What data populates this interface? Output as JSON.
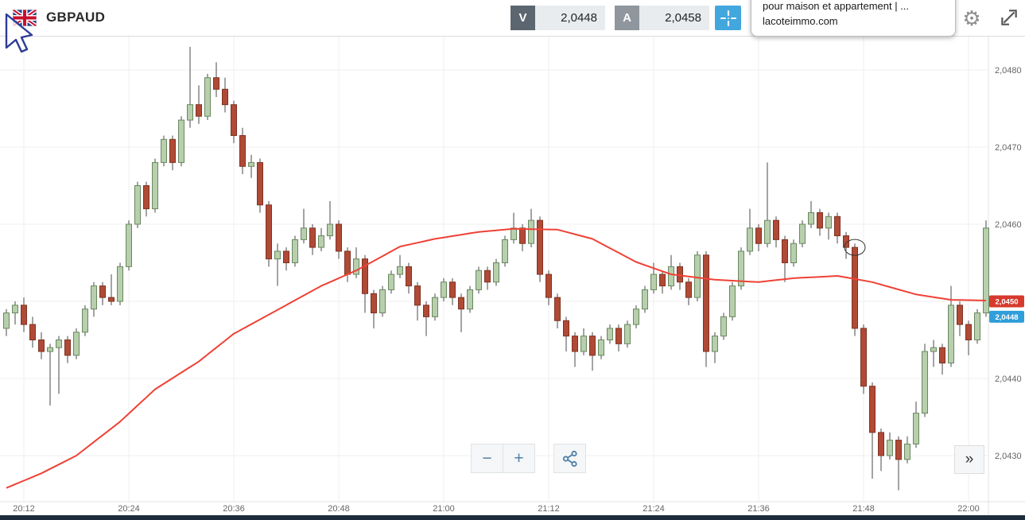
{
  "header": {
    "symbol": "GBPAUD",
    "sell": {
      "label": "V",
      "price": "2,0448"
    },
    "buy": {
      "label": "A",
      "price": "2,0458"
    },
    "popup": {
      "title": "pour maison et appartement | ...",
      "domain": "lacoteimmo.com"
    },
    "gear_icon": "⚙"
  },
  "footer_controls": {
    "zoom_out": "−",
    "zoom_in": "+",
    "more": "»"
  },
  "chart_data": {
    "type": "candlestick",
    "title": "GBPAUD 1-minute candlestick chart with red moving-average overlay",
    "price_base": 2.04,
    "pip_unit": 0.0001,
    "candles_format": "[open, high, low, close] in pips above 2.04 (e.g. 48.5 = 2.04485)",
    "start_time": "20:10",
    "interval_minutes": 1,
    "ylim": [
      2.0424,
      2.0484
    ],
    "grid": true,
    "x_ticks": [
      {
        "i": 2,
        "label": "20:12"
      },
      {
        "i": 14,
        "label": "20:24"
      },
      {
        "i": 26,
        "label": "20:36"
      },
      {
        "i": 38,
        "label": "20:48"
      },
      {
        "i": 50,
        "label": "21:00"
      },
      {
        "i": 62,
        "label": "21:12"
      },
      {
        "i": 74,
        "label": "21:24"
      },
      {
        "i": 86,
        "label": "21:36"
      },
      {
        "i": 98,
        "label": "21:48"
      },
      {
        "i": 110,
        "label": "22:00"
      }
    ],
    "y_gridlines": [
      2.048,
      2.047,
      2.046,
      2.045,
      2.044,
      2.043
    ],
    "y_ticks": [
      {
        "price": 2.048,
        "label": "2,0480"
      },
      {
        "price": 2.047,
        "label": "2,0470"
      },
      {
        "price": 2.046,
        "label": "2,0460"
      },
      {
        "price": 2.044,
        "label": "2,0440"
      },
      {
        "price": 2.043,
        "label": "2,0430"
      }
    ],
    "price_badges": [
      {
        "price": 2.045,
        "label": "2,0450",
        "color": "#d63a2c"
      },
      {
        "price": 2.0448,
        "label": "2,0448",
        "color": "#2f9ed9"
      }
    ],
    "annotation_circle": {
      "i": 97,
      "price": 2.0457
    },
    "colors": {
      "up_fill": "#b8cfae",
      "up_stroke": "#69885e",
      "down_fill": "#b04a36",
      "down_stroke": "#7e3322",
      "wick": "#4a4a4a",
      "ma": "#ef4136",
      "grid": "#efefef",
      "axis_line": "#e3e3e3",
      "axis_text": "#666666"
    },
    "candles": [
      [
        46.5,
        49.0,
        45.5,
        48.5
      ],
      [
        48.5,
        50.0,
        47.0,
        49.5
      ],
      [
        49.5,
        50.5,
        46.0,
        47.0
      ],
      [
        47.0,
        48.0,
        44.0,
        45.0
      ],
      [
        45.0,
        46.0,
        42.5,
        43.5
      ],
      [
        43.5,
        44.5,
        36.5,
        44.0
      ],
      [
        44.0,
        45.5,
        38.0,
        45.0
      ],
      [
        45.0,
        45.5,
        42.0,
        43.0
      ],
      [
        43.0,
        46.5,
        42.5,
        46.0
      ],
      [
        46.0,
        49.5,
        45.5,
        49.0
      ],
      [
        49.0,
        52.5,
        48.0,
        52.0
      ],
      [
        52.0,
        52.5,
        49.5,
        50.5
      ],
      [
        50.5,
        53.5,
        49.5,
        50.0
      ],
      [
        50.0,
        55.0,
        49.5,
        54.5
      ],
      [
        54.5,
        60.5,
        54.0,
        60.0
      ],
      [
        60.0,
        65.5,
        59.5,
        65.0
      ],
      [
        65.0,
        65.5,
        61.0,
        62.0
      ],
      [
        62.0,
        68.5,
        61.5,
        68.0
      ],
      [
        68.0,
        71.5,
        67.5,
        71.0
      ],
      [
        71.0,
        71.5,
        67.0,
        68.0
      ],
      [
        68.0,
        74.0,
        67.5,
        73.5
      ],
      [
        73.5,
        83.0,
        72.5,
        75.5
      ],
      [
        75.5,
        78.0,
        73.0,
        74.0
      ],
      [
        74.0,
        79.5,
        73.5,
        79.0
      ],
      [
        79.0,
        81.0,
        76.5,
        77.5
      ],
      [
        77.5,
        79.0,
        74.5,
        75.5
      ],
      [
        75.5,
        76.0,
        70.5,
        71.5
      ],
      [
        71.5,
        72.5,
        66.5,
        67.5
      ],
      [
        67.5,
        69.0,
        66.0,
        68.0
      ],
      [
        68.0,
        68.5,
        61.5,
        62.5
      ],
      [
        62.5,
        63.0,
        54.5,
        55.5
      ],
      [
        55.5,
        57.5,
        52.0,
        56.5
      ],
      [
        56.5,
        57.0,
        54.0,
        55.0
      ],
      [
        55.0,
        58.5,
        54.5,
        58.0
      ],
      [
        58.0,
        62.0,
        57.5,
        59.5
      ],
      [
        59.5,
        60.0,
        56.0,
        57.0
      ],
      [
        57.0,
        59.5,
        56.5,
        58.5
      ],
      [
        58.5,
        63.0,
        58.0,
        60.0
      ],
      [
        60.0,
        60.5,
        55.5,
        56.5
      ],
      [
        56.5,
        57.0,
        52.5,
        53.5
      ],
      [
        53.5,
        57.0,
        53.0,
        55.5
      ],
      [
        55.5,
        56.0,
        48.5,
        51.0
      ],
      [
        51.0,
        51.5,
        46.5,
        48.5
      ],
      [
        48.5,
        52.0,
        48.0,
        51.5
      ],
      [
        51.5,
        54.0,
        51.0,
        53.5
      ],
      [
        53.5,
        56.0,
        53.0,
        54.5
      ],
      [
        54.5,
        55.0,
        51.0,
        52.0
      ],
      [
        52.0,
        52.5,
        47.5,
        49.5
      ],
      [
        49.5,
        50.0,
        45.5,
        48.0
      ],
      [
        48.0,
        51.0,
        47.5,
        50.5
      ],
      [
        50.5,
        53.0,
        50.0,
        52.5
      ],
      [
        52.5,
        53.0,
        49.5,
        50.5
      ],
      [
        50.5,
        51.0,
        46.0,
        49.0
      ],
      [
        49.0,
        52.0,
        48.5,
        51.5
      ],
      [
        51.5,
        54.5,
        51.0,
        54.0
      ],
      [
        54.0,
        54.5,
        51.5,
        52.5
      ],
      [
        52.5,
        55.5,
        52.0,
        55.0
      ],
      [
        55.0,
        58.5,
        54.5,
        58.0
      ],
      [
        58.0,
        61.5,
        57.5,
        59.5
      ],
      [
        59.5,
        60.0,
        56.5,
        57.5
      ],
      [
        57.5,
        62.0,
        57.0,
        60.5
      ],
      [
        60.5,
        61.0,
        52.5,
        53.5
      ],
      [
        53.5,
        54.0,
        49.5,
        50.5
      ],
      [
        50.5,
        51.0,
        46.5,
        47.5
      ],
      [
        47.5,
        48.0,
        43.5,
        45.5
      ],
      [
        45.5,
        46.0,
        41.5,
        43.5
      ],
      [
        43.5,
        46.5,
        43.0,
        45.5
      ],
      [
        45.5,
        46.0,
        41.0,
        43.0
      ],
      [
        43.0,
        45.5,
        42.5,
        45.0
      ],
      [
        45.0,
        47.0,
        44.5,
        46.5
      ],
      [
        46.5,
        47.0,
        43.5,
        44.5
      ],
      [
        44.5,
        47.5,
        44.0,
        47.0
      ],
      [
        47.0,
        49.5,
        46.5,
        49.0
      ],
      [
        49.0,
        52.0,
        48.5,
        51.5
      ],
      [
        51.5,
        55.0,
        51.0,
        53.5
      ],
      [
        53.5,
        54.0,
        51.0,
        52.0
      ],
      [
        52.0,
        56.0,
        51.5,
        54.5
      ],
      [
        54.5,
        55.0,
        51.5,
        52.5
      ],
      [
        52.5,
        53.0,
        49.5,
        50.5
      ],
      [
        50.5,
        56.5,
        50.0,
        56.0
      ],
      [
        56.0,
        56.5,
        41.5,
        43.5
      ],
      [
        43.5,
        46.0,
        42.0,
        45.5
      ],
      [
        45.5,
        48.5,
        45.0,
        48.0
      ],
      [
        48.0,
        52.5,
        47.5,
        52.0
      ],
      [
        52.0,
        57.0,
        51.5,
        56.5
      ],
      [
        56.5,
        62.0,
        56.0,
        59.5
      ],
      [
        59.5,
        60.0,
        56.5,
        57.5
      ],
      [
        57.5,
        68.0,
        57.0,
        60.5
      ],
      [
        60.5,
        61.0,
        57.0,
        58.0
      ],
      [
        58.0,
        58.5,
        52.5,
        55.0
      ],
      [
        55.0,
        58.0,
        54.5,
        57.5
      ],
      [
        57.5,
        60.5,
        57.0,
        60.0
      ],
      [
        60.0,
        63.0,
        59.5,
        61.5
      ],
      [
        61.5,
        62.0,
        58.5,
        59.5
      ],
      [
        59.5,
        61.5,
        58.0,
        61.0
      ],
      [
        61.0,
        61.5,
        57.5,
        58.5
      ],
      [
        58.5,
        59.0,
        55.5,
        57.0
      ],
      [
        57.0,
        57.5,
        45.5,
        46.5
      ],
      [
        46.5,
        47.0,
        38.0,
        39.0
      ],
      [
        39.0,
        39.5,
        27.0,
        33.0
      ],
      [
        33.0,
        33.5,
        28.0,
        30.0
      ],
      [
        30.0,
        33.0,
        29.5,
        32.0
      ],
      [
        32.0,
        32.5,
        25.5,
        29.5
      ],
      [
        29.5,
        32.5,
        29.0,
        31.5
      ],
      [
        31.5,
        37.0,
        31.0,
        35.5
      ],
      [
        35.5,
        44.5,
        35.0,
        43.5
      ],
      [
        43.5,
        45.0,
        41.5,
        44.0
      ],
      [
        44.0,
        44.5,
        40.5,
        42.0
      ],
      [
        42.0,
        52.0,
        41.5,
        49.5
      ],
      [
        49.5,
        50.0,
        45.5,
        47.0
      ],
      [
        47.0,
        47.5,
        43.0,
        45.0
      ],
      [
        45.0,
        49.0,
        44.5,
        48.5
      ],
      [
        48.5,
        60.5,
        48.0,
        59.5
      ]
    ],
    "ma_points": [
      [
        0,
        25.8
      ],
      [
        4,
        27.7
      ],
      [
        8,
        30.0
      ],
      [
        13,
        34.4
      ],
      [
        17,
        38.6
      ],
      [
        22,
        42.2
      ],
      [
        26,
        45.8
      ],
      [
        31,
        48.9
      ],
      [
        36,
        52.0
      ],
      [
        40,
        54.0
      ],
      [
        45,
        57.1
      ],
      [
        49,
        58.1
      ],
      [
        54,
        59.0
      ],
      [
        58,
        59.4
      ],
      [
        63,
        59.3
      ],
      [
        67,
        58.1
      ],
      [
        72,
        55.1
      ],
      [
        76,
        53.5
      ],
      [
        81,
        52.8
      ],
      [
        86,
        52.5
      ],
      [
        90,
        53.0
      ],
      [
        95,
        53.3
      ],
      [
        99,
        52.5
      ],
      [
        104,
        50.9
      ],
      [
        108,
        50.2
      ],
      [
        112,
        50.1
      ]
    ]
  }
}
